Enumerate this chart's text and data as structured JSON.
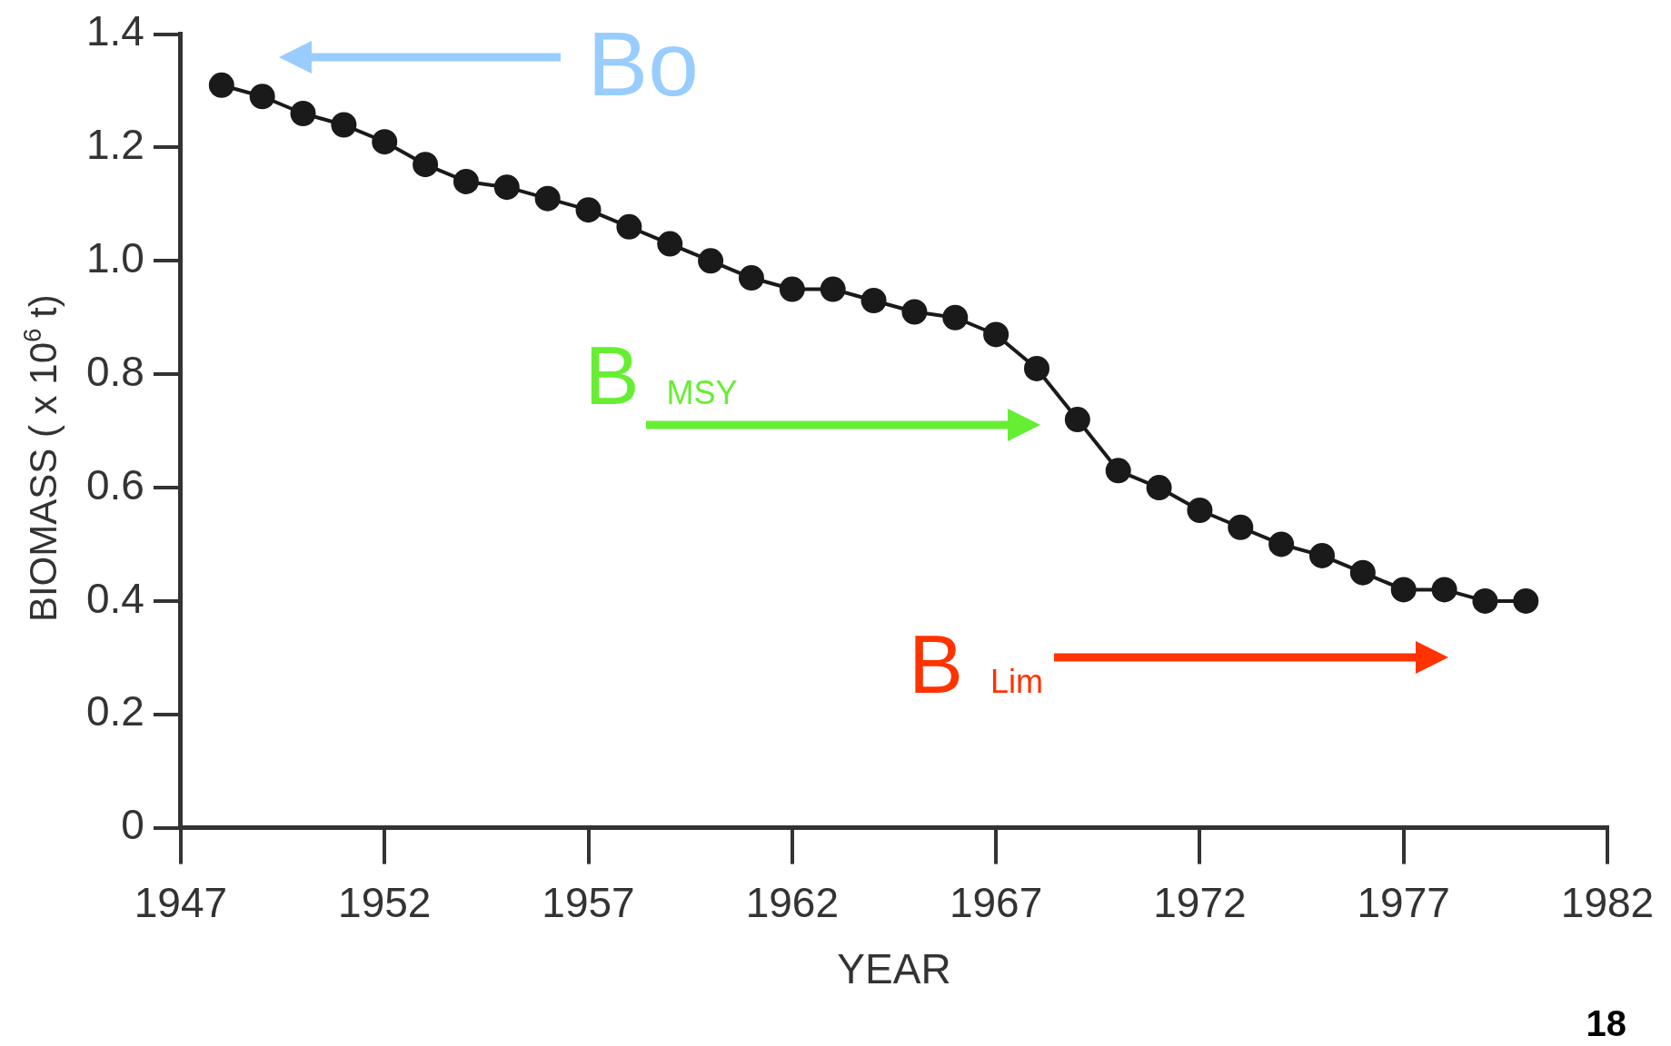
{
  "chart_data": {
    "type": "line",
    "xlabel": "YEAR",
    "ylabel": "BIOMASS ( x 10$^{6}$ t)",
    "x": [
      1948,
      1949,
      1950,
      1951,
      1952,
      1953,
      1954,
      1955,
      1956,
      1957,
      1958,
      1959,
      1960,
      1961,
      1962,
      1963,
      1964,
      1965,
      1966,
      1967,
      1968,
      1969,
      1970,
      1971,
      1972,
      1973,
      1974,
      1975,
      1976,
      1977,
      1978,
      1979,
      1980
    ],
    "series": [
      {
        "color": "#1a1a1a",
        "values": [
          1.31,
          1.29,
          1.26,
          1.24,
          1.21,
          1.17,
          1.14,
          1.13,
          1.11,
          1.09,
          1.06,
          1.03,
          1.0,
          0.97,
          0.95,
          0.95,
          0.93,
          0.91,
          0.9,
          0.87,
          0.81,
          0.72,
          0.63,
          0.6,
          0.56,
          0.53,
          0.5,
          0.48,
          0.45,
          0.42,
          0.42,
          0.4,
          0.4
        ]
      }
    ],
    "xlim": [
      1947,
      1982
    ],
    "xticks": [
      1947,
      1952,
      1957,
      1962,
      1967,
      1972,
      1977,
      1982
    ],
    "ylim": [
      0,
      1.4
    ],
    "yticks": [
      0,
      {
        "value": 0.2,
        "label": "0.2"
      },
      {
        "value": 0.4,
        "label": "0.4"
      },
      {
        "value": 0.6,
        "label": "0.6"
      },
      {
        "value": 0.8,
        "label": "0.8"
      },
      {
        "value": 1.0,
        "label": "1.0"
      },
      {
        "value": 1.2,
        "label": "1.2"
      },
      {
        "value": 1.4,
        "label": "1.4"
      }
    ],
    "grid": false,
    "legend": false,
    "marker": "circle",
    "line_style": "solid",
    "annotations": [
      "Bo",
      "B$_{MSY}$",
      "B$_{Lim}$",
      "18"
    ]
  }
}
